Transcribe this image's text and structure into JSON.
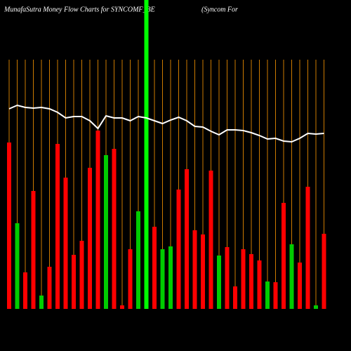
{
  "chart_data": {
    "type": "bar",
    "title": "MunafaSutra  Money Flow  Charts for SYNCOMF_BE",
    "subtitle": "(Syncom For",
    "categories": [
      null,
      null,
      null,
      null,
      null,
      null,
      null,
      null,
      null,
      null,
      null,
      null,
      null,
      null,
      null,
      null,
      null,
      null,
      null,
      null,
      null,
      null,
      null,
      null,
      null,
      null,
      null,
      null,
      null,
      null,
      null,
      null,
      null,
      null,
      null,
      null,
      null,
      null,
      null,
      null
    ],
    "values": [
      237,
      122,
      52,
      168,
      19,
      60,
      235,
      187,
      77,
      97,
      201,
      254,
      219,
      228,
      5,
      85,
      139,
      440,
      117,
      85,
      89,
      170,
      199,
      112,
      106,
      197,
      76,
      88,
      32,
      85,
      78,
      69,
      39,
      38,
      151,
      92,
      66,
      174,
      5,
      107
    ],
    "colors": [
      "#ff0000",
      "#00cc00",
      "#ff0000",
      "#ff0000",
      "#00cc00",
      "#ff0000",
      "#ff0000",
      "#ff0000",
      "#ff0000",
      "#ff0000",
      "#ff0000",
      "#ff0000",
      "#00cc00",
      "#ff0000",
      "#ff0000",
      "#ff0000",
      "#00cc00",
      "#00ff00",
      "#ff0000",
      "#00cc00",
      "#00cc00",
      "#ff0000",
      "#ff0000",
      "#ff0000",
      "#ff0000",
      "#ff0000",
      "#00cc00",
      "#ff0000",
      "#ff0000",
      "#ff0000",
      "#ff0000",
      "#ff0000",
      "#00cc00",
      "#ff0000",
      "#ff0000",
      "#00cc00",
      "#ff0000",
      "#ff0000",
      "#00cc00",
      "#ff0000"
    ],
    "line": {
      "color": "#ffffff",
      "values": [
        285,
        290,
        287,
        286,
        287,
        285,
        280,
        272,
        274,
        274,
        268,
        257,
        275,
        272,
        272,
        268,
        274,
        272,
        268,
        264,
        269,
        273,
        268,
        260,
        259,
        253,
        248,
        255,
        255,
        254,
        251,
        247,
        242,
        243,
        239,
        238,
        243,
        250,
        249,
        250
      ]
    },
    "ylim": [
      0,
      440
    ],
    "guide_color": "#cc7a00"
  }
}
